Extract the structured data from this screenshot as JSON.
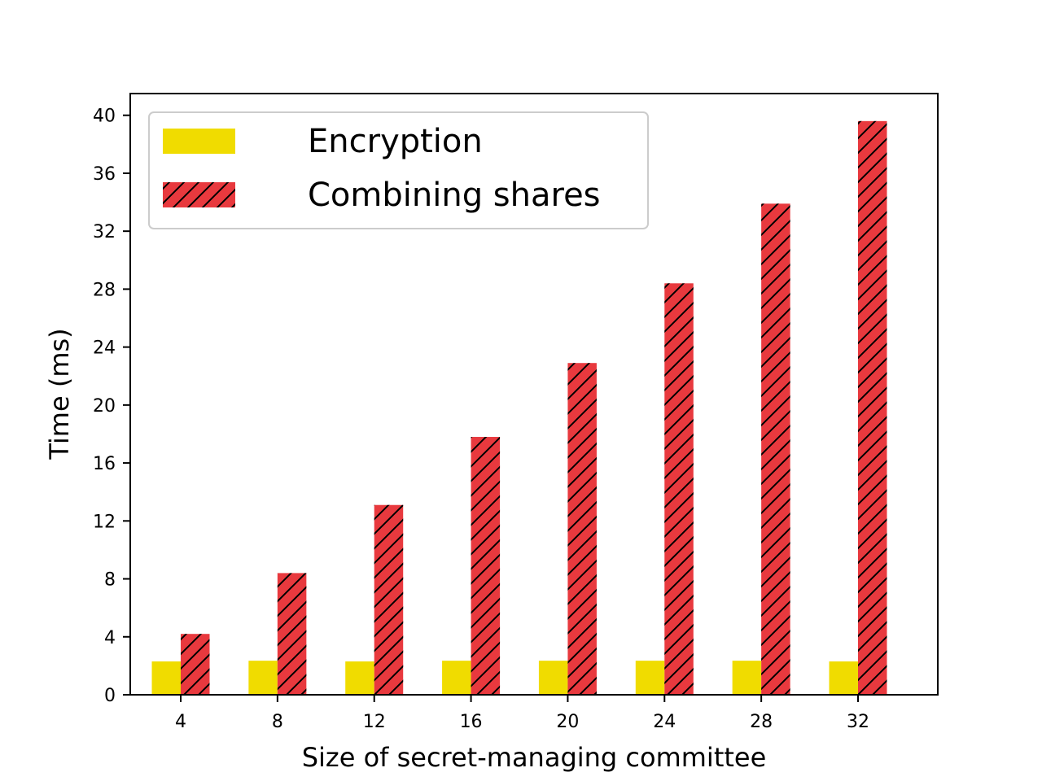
{
  "chart_data": {
    "type": "bar",
    "title": "",
    "xlabel": "Size of secret-managing committee",
    "ylabel": "Time (ms)",
    "categories": [
      "4",
      "8",
      "12",
      "16",
      "20",
      "24",
      "28",
      "32"
    ],
    "ylim": [
      0,
      41.5
    ],
    "yticks": [
      0,
      4,
      8,
      12,
      16,
      20,
      24,
      28,
      32,
      36,
      40
    ],
    "grid": false,
    "legend_position": "top-left",
    "series": [
      {
        "name": "Encryption",
        "color": "#f0dc00",
        "hatch": "none",
        "values": [
          2.3,
          2.35,
          2.3,
          2.35,
          2.35,
          2.35,
          2.35,
          2.3
        ]
      },
      {
        "name": "Combining shares",
        "color": "#e8393e",
        "hatch": "diagonal",
        "values": [
          4.2,
          8.4,
          13.1,
          17.8,
          22.9,
          28.4,
          33.9,
          39.6
        ]
      }
    ]
  }
}
